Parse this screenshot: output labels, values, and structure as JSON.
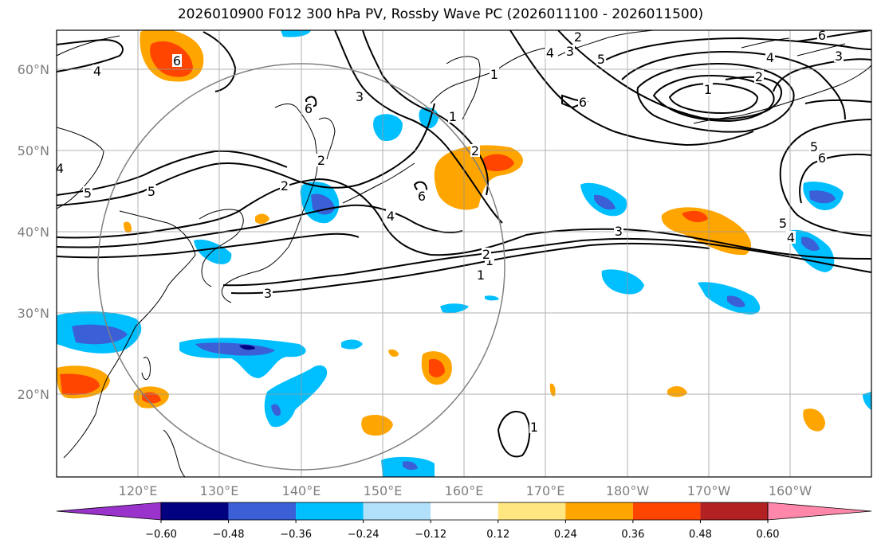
{
  "title": "2026010900 F012 300 hPa PV, Rossby Wave PC (2026011100 - 2026011500)",
  "map": {
    "lat_labels": [
      "60°N",
      "50°N",
      "40°N",
      "30°N",
      "20°N"
    ],
    "lon_labels": [
      "120°E",
      "130°E",
      "140°E",
      "150°E",
      "160°E",
      "170°E",
      "180°W",
      "170°W",
      "160°W"
    ],
    "contour_labels": [
      "4",
      "6",
      "2",
      "3",
      "5",
      "1",
      "5",
      "2",
      "3",
      "4",
      "5",
      "1",
      "4",
      "2",
      "6",
      "6",
      "2",
      "6",
      "4",
      "3",
      "1",
      "2",
      "3",
      "5",
      "6",
      "5",
      "4",
      "4",
      "1",
      "3",
      "2",
      "1",
      "6",
      "1"
    ]
  },
  "colorbar": {
    "labels": [
      "−0.60",
      "−0.48",
      "−0.36",
      "−0.24",
      "−0.12",
      "0.12",
      "0.24",
      "0.36",
      "0.48",
      "0.60"
    ],
    "colors": [
      "#9933cc",
      "#000080",
      "#3a5fd6",
      "#00bfff",
      "#b0e0fa",
      "#ffffff",
      "#ffe680",
      "#ffa500",
      "#ff4500",
      "#b22222",
      "#ff88aa"
    ]
  }
}
